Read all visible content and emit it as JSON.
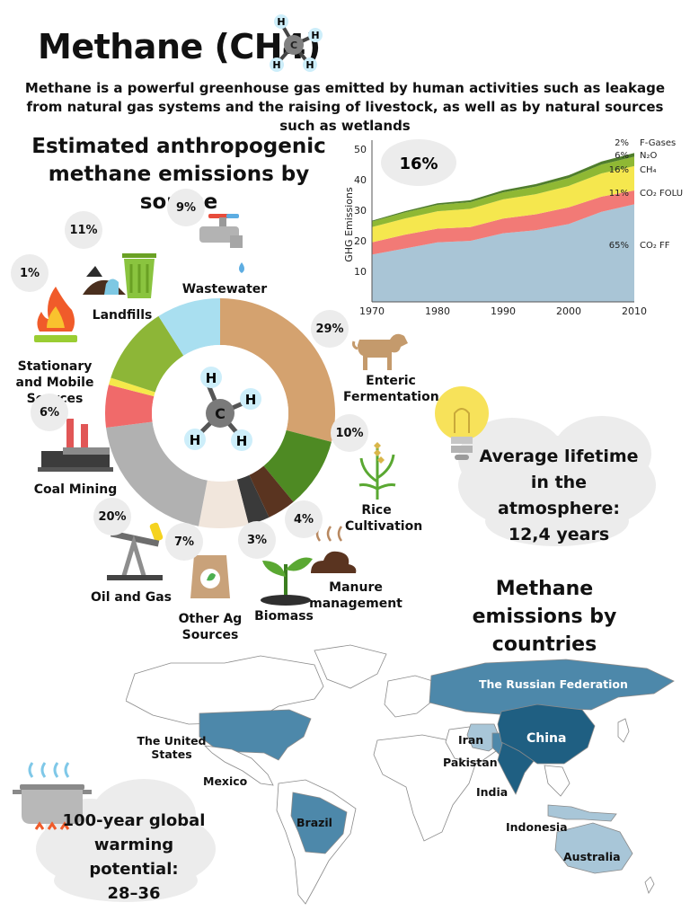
{
  "header": {
    "title": "Methane (CH4)",
    "subtitle": "Methane is a powerful greenhouse gas emitted by human activities such as leakage from natural gas systems and the raising of livestock, as well as by natural sources such as wetlands"
  },
  "molecule": {
    "center": "C",
    "hydrogen": "H"
  },
  "sources": {
    "heading": "Estimated anthropogenic methane emissions by source",
    "items": [
      {
        "label": "Enteric Fermentation",
        "percent": "29%",
        "value": 29,
        "color": "#d4a26f"
      },
      {
        "label": "Rice Cultivation",
        "percent": "10%",
        "value": 10,
        "color": "#4e8a23"
      },
      {
        "label": "Manure management",
        "percent": "4%",
        "value": 4,
        "color": "#5a3420"
      },
      {
        "label": "Biomass",
        "percent": "3%",
        "value": 3,
        "color": "#3a3a3a"
      },
      {
        "label": "Other Ag Sources",
        "percent": "7%",
        "value": 7,
        "color": "#f1e6dc"
      },
      {
        "label": "Oil and Gas",
        "percent": "20%",
        "value": 20,
        "color": "#b1b1b1"
      },
      {
        "label": "Coal Mining",
        "percent": "6%",
        "value": 6,
        "color": "#f06a6a"
      },
      {
        "label": "Stationary and Mobile Sources",
        "percent": "1%",
        "value": 1,
        "color": "#f5e94a"
      },
      {
        "label": "Landfills",
        "percent": "11%",
        "value": 11,
        "color": "#8db637"
      },
      {
        "label": "Wastewater",
        "percent": "9%",
        "value": 9,
        "color": "#a9dff0"
      }
    ]
  },
  "chart_data": {
    "type": "area",
    "title": "",
    "xlabel": "",
    "ylabel": "GHG Emissions",
    "x": [
      1970,
      1975,
      1980,
      1985,
      1990,
      1995,
      2000,
      2005,
      2010
    ],
    "xticks": [
      "1970",
      "1980",
      "1990",
      "2000",
      "2010"
    ],
    "yticks": [
      "10",
      "20",
      "30",
      "40",
      "50"
    ],
    "xlim": [
      1970,
      2010
    ],
    "ylim": [
      0,
      53
    ],
    "series": [
      {
        "name": "CO₂ FF",
        "share": "65%",
        "color": "#a9c5d6",
        "values": [
          15.5,
          17.5,
          19.5,
          20,
          22.5,
          23.5,
          25.5,
          29.5,
          32
        ]
      },
      {
        "name": "CO₂ FOLU",
        "share": "11%",
        "color": "#f27a76",
        "values": [
          4,
          4.5,
          4.5,
          4.5,
          4.8,
          5.2,
          5.5,
          5,
          4.5
        ]
      },
      {
        "name": "CH₄",
        "share": "16%",
        "color": "#f5e74e",
        "values": [
          5,
          5.3,
          5.7,
          6,
          6.3,
          6.6,
          7,
          7.6,
          8
        ]
      },
      {
        "name": "N₂O",
        "share": "6%",
        "color": "#8fb834",
        "values": [
          1.8,
          2,
          2.1,
          2.2,
          2.3,
          2.5,
          2.6,
          2.9,
          3.1
        ]
      },
      {
        "name": "F-Gases",
        "share": "2%",
        "color": "#4f7d2c",
        "values": [
          0.3,
          0.4,
          0.5,
          0.6,
          0.7,
          0.8,
          0.9,
          1,
          1.2
        ]
      }
    ],
    "callout": "16%"
  },
  "lifetime": {
    "line1": "Average lifetime",
    "line2": "in the atmosphere:",
    "line3": "12,4 years"
  },
  "countries": {
    "heading": "Methane emissions by countries",
    "labels": [
      "The Russian Federation",
      "China",
      "Iran",
      "Pakistan",
      "India",
      "Indonesia",
      "Australia",
      "The United States",
      "Mexico",
      "Brazil"
    ]
  },
  "gwp": {
    "line1": "100-year global",
    "line2": "warming potential:",
    "line3": "28–36"
  },
  "colors": {
    "map_dark": "#1f5f82",
    "map_mid": "#4d88aa",
    "map_light": "#a8c6d8",
    "map_base": "#ffffff"
  }
}
